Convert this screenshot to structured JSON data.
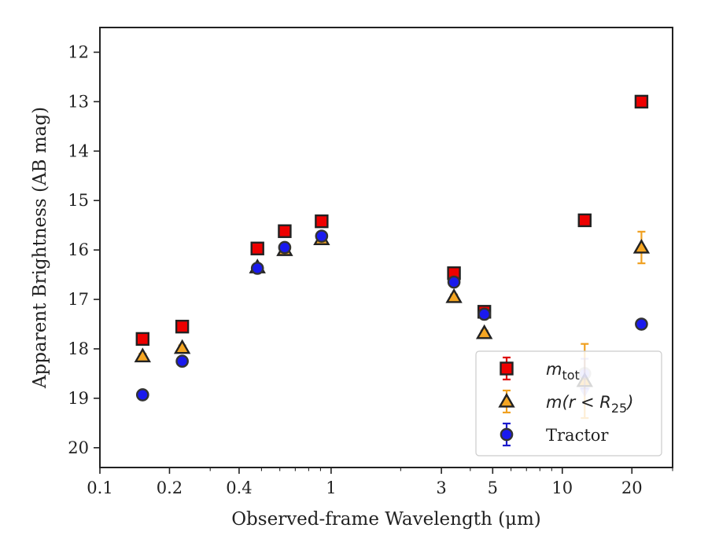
{
  "chart_data": {
    "type": "scatter",
    "title": "",
    "xlabel": "Observed-frame Wavelength (μm)",
    "ylabel": "Apparent Brightness (AB mag)",
    "xscale": "log",
    "xlim": [
      0.1,
      30
    ],
    "ylim": [
      20.4,
      11.5
    ],
    "y_inverted": true,
    "x_ticks": [
      0.1,
      0.2,
      0.4,
      1,
      3,
      5,
      10,
      20
    ],
    "x_tick_labels": [
      "0.1",
      "0.2",
      "0.4",
      "1",
      "3",
      "5",
      "10",
      "20"
    ],
    "y_ticks": [
      12,
      13,
      14,
      15,
      16,
      17,
      18,
      19,
      20
    ],
    "y_tick_labels": [
      "12",
      "13",
      "14",
      "15",
      "16",
      "17",
      "18",
      "19",
      "20"
    ],
    "grid": false,
    "legend_position": "lower-right",
    "series": [
      {
        "name": "m_tot",
        "label_main": "m",
        "label_sub": "tot",
        "marker": "square",
        "color": "#ee0000",
        "edge_color": "#222222",
        "errbar_color": "#dd0000",
        "points": [
          {
            "x": 0.153,
            "y": 17.8,
            "err": 0.05
          },
          {
            "x": 0.227,
            "y": 17.55,
            "err": 0.05
          },
          {
            "x": 0.48,
            "y": 15.97,
            "err": 0.05
          },
          {
            "x": 0.63,
            "y": 15.62,
            "err": 0.05
          },
          {
            "x": 0.91,
            "y": 15.42,
            "err": 0.05
          },
          {
            "x": 3.4,
            "y": 16.47,
            "err": 0.05
          },
          {
            "x": 4.6,
            "y": 17.25,
            "err": 0.05
          },
          {
            "x": 12.5,
            "y": 15.4,
            "err": 0.05
          },
          {
            "x": 22.0,
            "y": 13.0,
            "err": 0.05
          }
        ]
      },
      {
        "name": "m(r < R25)",
        "label_main": "m(r < R",
        "label_sub": "25",
        "label_end": ")",
        "marker": "triangle",
        "color": "#f5a623",
        "edge_color": "#222222",
        "errbar_color": "#f0a020",
        "points": [
          {
            "x": 0.153,
            "y": 18.15,
            "err": 0.05
          },
          {
            "x": 0.227,
            "y": 17.98,
            "err": 0.05
          },
          {
            "x": 0.48,
            "y": 16.35,
            "err": 0.05
          },
          {
            "x": 0.63,
            "y": 16.0,
            "err": 0.05
          },
          {
            "x": 0.91,
            "y": 15.78,
            "err": 0.05
          },
          {
            "x": 3.4,
            "y": 16.95,
            "err": 0.05
          },
          {
            "x": 4.6,
            "y": 17.68,
            "err": 0.05
          },
          {
            "x": 12.5,
            "y": 18.65,
            "err": 0.75
          },
          {
            "x": 22.0,
            "y": 15.95,
            "err": 0.32
          }
        ]
      },
      {
        "name": "Tractor",
        "label_main": "Tractor",
        "marker": "circle",
        "color": "#1a1aee",
        "edge_color": "#333333",
        "errbar_color": "#1a1acc",
        "points": [
          {
            "x": 0.153,
            "y": 18.93,
            "err": 0.05
          },
          {
            "x": 0.227,
            "y": 18.25,
            "err": 0.05
          },
          {
            "x": 0.48,
            "y": 16.37,
            "err": 0.05
          },
          {
            "x": 0.63,
            "y": 15.95,
            "err": 0.05
          },
          {
            "x": 0.91,
            "y": 15.72,
            "err": 0.05
          },
          {
            "x": 3.4,
            "y": 16.65,
            "err": 0.05
          },
          {
            "x": 4.6,
            "y": 17.3,
            "err": 0.05
          },
          {
            "x": 12.5,
            "y": 18.5,
            "err": 0.3,
            "faded": true,
            "upper_limit": true
          },
          {
            "x": 22.0,
            "y": 17.5,
            "err": 0.05
          }
        ]
      }
    ]
  }
}
